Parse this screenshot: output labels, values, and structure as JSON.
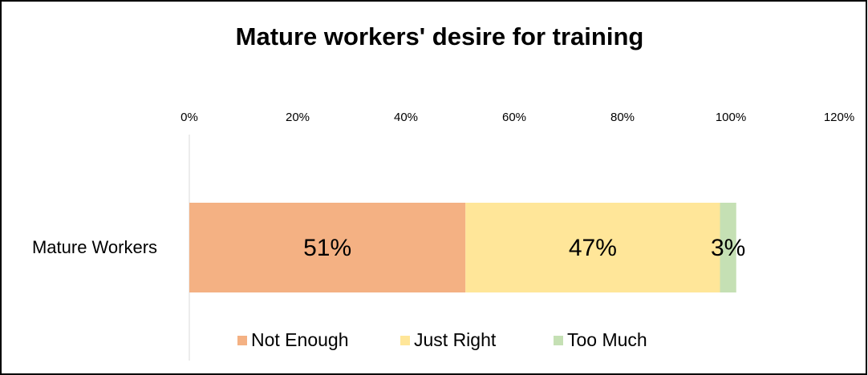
{
  "chart_data": {
    "type": "stacked_bar_horizontal",
    "title": "Mature workers' desire for training",
    "categories": [
      "Mature Workers"
    ],
    "series": [
      {
        "name": "Not Enough",
        "color": "#f4b183",
        "values": [
          51
        ],
        "value_labels": [
          "51%"
        ]
      },
      {
        "name": "Just Right",
        "color": "#ffe699",
        "values": [
          47
        ],
        "value_labels": [
          "47%"
        ]
      },
      {
        "name": "Too Much",
        "color": "#c5e0b4",
        "values": [
          3
        ],
        "value_labels": [
          "3%"
        ]
      }
    ],
    "xlim": [
      0,
      120
    ],
    "xticks": [
      {
        "value": 0,
        "label": "0%"
      },
      {
        "value": 20,
        "label": "20%"
      },
      {
        "value": 40,
        "label": "40%"
      },
      {
        "value": 60,
        "label": "60%"
      },
      {
        "value": 80,
        "label": "80%"
      },
      {
        "value": 100,
        "label": "100%"
      },
      {
        "value": 120,
        "label": "120%"
      }
    ],
    "legend": "bottom"
  }
}
